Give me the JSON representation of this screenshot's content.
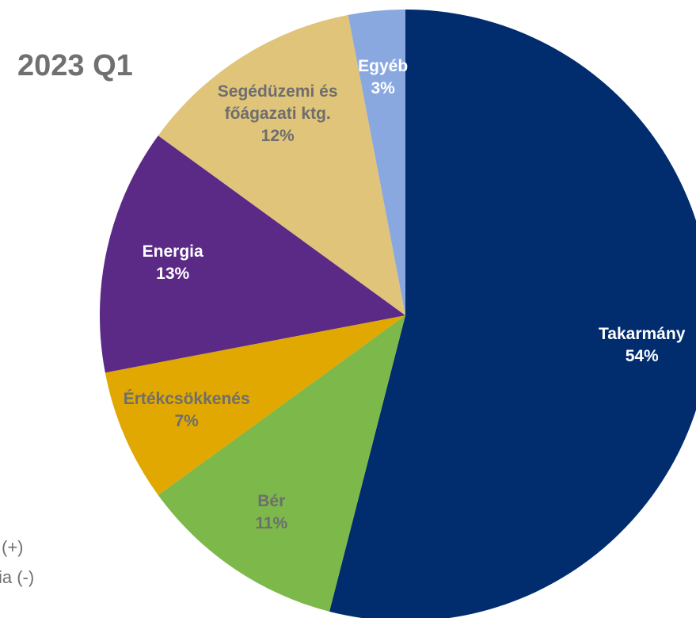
{
  "chart_data": {
    "type": "pie",
    "title": "2023 Q1",
    "categories": [
      "Takarmány",
      "Bér",
      "Értékcsökkenés",
      "Energia",
      "Segédüzemi és főágazati ktg.",
      "Egyéb"
    ],
    "values": [
      54,
      11,
      7,
      13,
      12,
      3
    ],
    "value_labels": [
      "54%",
      "11%",
      "7%",
      "13%",
      "12%",
      "3%"
    ],
    "colors": [
      "#012d6e",
      "#7db84a",
      "#e0a800",
      "#5b2a86",
      "#e0c47a",
      "#8aa8e0"
    ],
    "label_colors": [
      "#ffffff",
      "#6e6e6e",
      "#6e6e6e",
      "#ffffff",
      "#6e6e6e",
      "#ffffff"
    ]
  },
  "fragments": [
    "(+)",
    "ia (-)"
  ]
}
